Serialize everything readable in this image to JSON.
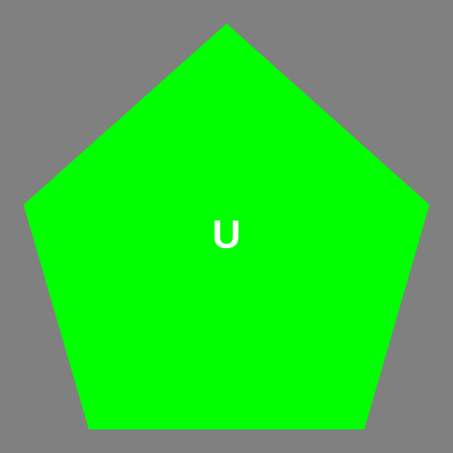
{
  "background_color": "#808080",
  "shape": {
    "type": "pentagon",
    "fill_color": "#00ff00",
    "label": "U",
    "label_color": "#ffffff"
  }
}
